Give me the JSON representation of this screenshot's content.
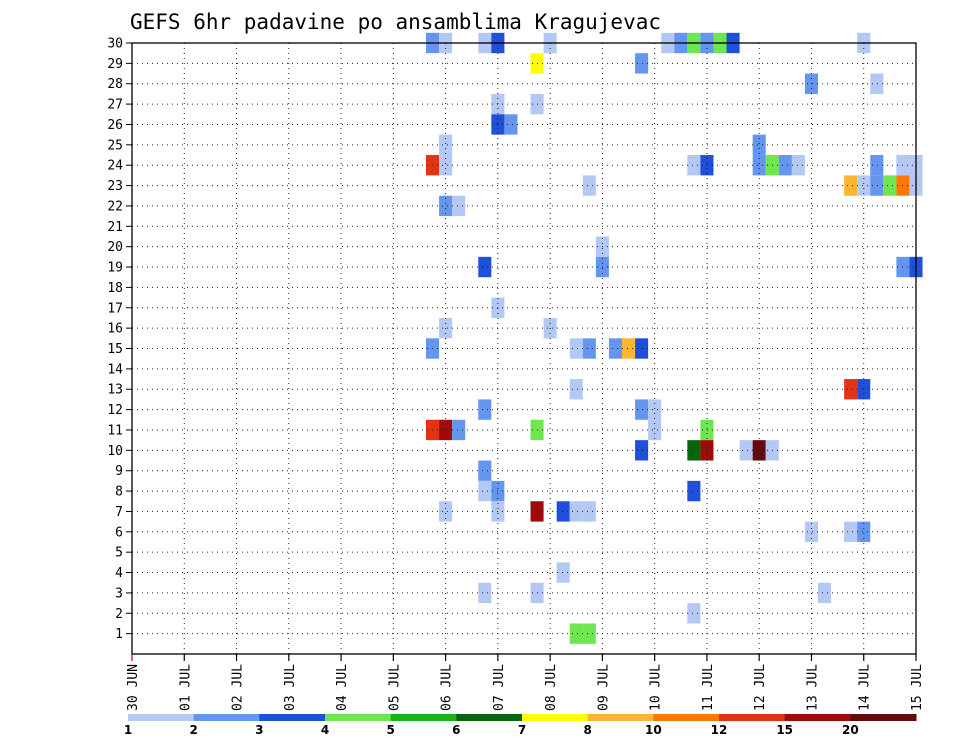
{
  "chart_data": {
    "type": "heatmap",
    "title": "GEFS 6hr padavine po ansamblima Kragujevac",
    "xlabel": "",
    "ylabel": "",
    "x_tick_labels": [
      "30 JUN",
      "01 JUL",
      "02 JUL",
      "03 JUL",
      "04 JUL",
      "05 JUL",
      "06 JUL",
      "07 JUL",
      "08 JUL",
      "09 JUL",
      "10 JUL",
      "11 JUL",
      "12 JUL",
      "13 JUL",
      "14 JUL",
      "15 JUL"
    ],
    "x_range_days": [
      0,
      15
    ],
    "y_tick_labels": [
      "1",
      "2",
      "3",
      "4",
      "5",
      "6",
      "7",
      "8",
      "9",
      "10",
      "11",
      "12",
      "13",
      "14",
      "15",
      "16",
      "17",
      "18",
      "19",
      "20",
      "21",
      "22",
      "23",
      "24",
      "25",
      "26",
      "27",
      "28",
      "29",
      "30"
    ],
    "y_range": [
      0,
      30
    ],
    "grid": true,
    "grid_style": "dotted",
    "legend": {
      "placement": "bottom",
      "colors": [
        "#b4c8f5",
        "#6496f0",
        "#1e50dc",
        "#6ee650",
        "#19b419",
        "#0a640a",
        "#ffff00",
        "#ffb432",
        "#ff7800",
        "#e63214",
        "#a00a0a",
        "#640a0a"
      ],
      "labels": [
        "1",
        "2",
        "3",
        "4",
        "5",
        "6",
        "7",
        "8",
        "10",
        "12",
        "15",
        "20"
      ]
    },
    "cells": [
      {
        "day": 5.75,
        "member": 30,
        "c": 2
      },
      {
        "day": 6.0,
        "member": 30,
        "c": 1
      },
      {
        "day": 6.75,
        "member": 30,
        "c": 1
      },
      {
        "day": 7.0,
        "member": 30,
        "c": 3
      },
      {
        "day": 8.0,
        "member": 30,
        "c": 1
      },
      {
        "day": 10.25,
        "member": 30,
        "c": 1
      },
      {
        "day": 10.5,
        "member": 30,
        "c": 2
      },
      {
        "day": 10.75,
        "member": 30,
        "c": 4
      },
      {
        "day": 11.0,
        "member": 30,
        "c": 2
      },
      {
        "day": 11.25,
        "member": 30,
        "c": 4
      },
      {
        "day": 11.5,
        "member": 30,
        "c": 3
      },
      {
        "day": 14.0,
        "member": 30,
        "c": 1
      },
      {
        "day": 7.75,
        "member": 29,
        "c": 7
      },
      {
        "day": 9.75,
        "member": 29,
        "c": 2
      },
      {
        "day": 13.0,
        "member": 28,
        "c": 2
      },
      {
        "day": 14.25,
        "member": 28,
        "c": 1
      },
      {
        "day": 7.0,
        "member": 27,
        "c": 1
      },
      {
        "day": 7.75,
        "member": 27,
        "c": 1
      },
      {
        "day": 7.0,
        "member": 26,
        "c": 3
      },
      {
        "day": 7.25,
        "member": 26,
        "c": 2
      },
      {
        "day": 6.0,
        "member": 25,
        "c": 1
      },
      {
        "day": 12.0,
        "member": 25,
        "c": 2
      },
      {
        "day": 5.75,
        "member": 24,
        "c": 10
      },
      {
        "day": 6.0,
        "member": 24,
        "c": 1
      },
      {
        "day": 10.75,
        "member": 24,
        "c": 1
      },
      {
        "day": 11.0,
        "member": 24,
        "c": 3
      },
      {
        "day": 12.0,
        "member": 24,
        "c": 2
      },
      {
        "day": 12.25,
        "member": 24,
        "c": 4
      },
      {
        "day": 12.5,
        "member": 24,
        "c": 2
      },
      {
        "day": 12.75,
        "member": 24,
        "c": 1
      },
      {
        "day": 14.25,
        "member": 24,
        "c": 2
      },
      {
        "day": 14.75,
        "member": 24,
        "c": 1
      },
      {
        "day": 15.0,
        "member": 24,
        "c": 1
      },
      {
        "day": 8.75,
        "member": 23,
        "c": 1
      },
      {
        "day": 13.75,
        "member": 23,
        "c": 8
      },
      {
        "day": 14.0,
        "member": 23,
        "c": 1
      },
      {
        "day": 14.25,
        "member": 23,
        "c": 2
      },
      {
        "day": 14.5,
        "member": 23,
        "c": 4
      },
      {
        "day": 14.75,
        "member": 23,
        "c": 9
      },
      {
        "day": 15.0,
        "member": 23,
        "c": 1
      },
      {
        "day": 6.0,
        "member": 22,
        "c": 2
      },
      {
        "day": 6.25,
        "member": 22,
        "c": 1
      },
      {
        "day": 9.0,
        "member": 20,
        "c": 1
      },
      {
        "day": 9.0,
        "member": 19,
        "c": 2
      },
      {
        "day": 6.75,
        "member": 19,
        "c": 3
      },
      {
        "day": 14.75,
        "member": 19,
        "c": 2
      },
      {
        "day": 15.0,
        "member": 19,
        "c": 3
      },
      {
        "day": 7.0,
        "member": 17,
        "c": 1
      },
      {
        "day": 6.0,
        "member": 16,
        "c": 1
      },
      {
        "day": 8.0,
        "member": 16,
        "c": 1
      },
      {
        "day": 5.75,
        "member": 15,
        "c": 2
      },
      {
        "day": 8.5,
        "member": 15,
        "c": 1
      },
      {
        "day": 8.75,
        "member": 15,
        "c": 2
      },
      {
        "day": 9.25,
        "member": 15,
        "c": 2
      },
      {
        "day": 9.5,
        "member": 15,
        "c": 8
      },
      {
        "day": 9.75,
        "member": 15,
        "c": 3
      },
      {
        "day": 8.5,
        "member": 13,
        "c": 1
      },
      {
        "day": 13.75,
        "member": 13,
        "c": 10
      },
      {
        "day": 14.0,
        "member": 13,
        "c": 3
      },
      {
        "day": 6.75,
        "member": 12,
        "c": 2
      },
      {
        "day": 9.75,
        "member": 12,
        "c": 2
      },
      {
        "day": 10.0,
        "member": 12,
        "c": 1
      },
      {
        "day": 5.75,
        "member": 11,
        "c": 10
      },
      {
        "day": 6.0,
        "member": 11,
        "c": 11
      },
      {
        "day": 6.25,
        "member": 11,
        "c": 2
      },
      {
        "day": 7.75,
        "member": 11,
        "c": 4
      },
      {
        "day": 10.0,
        "member": 11,
        "c": 1
      },
      {
        "day": 11.0,
        "member": 11,
        "c": 4
      },
      {
        "day": 9.75,
        "member": 10,
        "c": 3
      },
      {
        "day": 10.75,
        "member": 10,
        "c": 6
      },
      {
        "day": 11.0,
        "member": 10,
        "c": 11
      },
      {
        "day": 11.75,
        "member": 10,
        "c": 1
      },
      {
        "day": 12.0,
        "member": 10,
        "c": 12
      },
      {
        "day": 12.25,
        "member": 10,
        "c": 1
      },
      {
        "day": 6.75,
        "member": 9,
        "c": 2
      },
      {
        "day": 6.75,
        "member": 8,
        "c": 1
      },
      {
        "day": 7.0,
        "member": 8,
        "c": 2
      },
      {
        "day": 10.75,
        "member": 8,
        "c": 3
      },
      {
        "day": 6.0,
        "member": 7,
        "c": 1
      },
      {
        "day": 7.0,
        "member": 7,
        "c": 1
      },
      {
        "day": 7.75,
        "member": 7,
        "c": 11
      },
      {
        "day": 8.25,
        "member": 7,
        "c": 3
      },
      {
        "day": 8.5,
        "member": 7,
        "c": 1
      },
      {
        "day": 8.75,
        "member": 7,
        "c": 1
      },
      {
        "day": 13.0,
        "member": 6,
        "c": 1
      },
      {
        "day": 13.75,
        "member": 6,
        "c": 1
      },
      {
        "day": 14.0,
        "member": 6,
        "c": 2
      },
      {
        "day": 8.25,
        "member": 4,
        "c": 1
      },
      {
        "day": 6.75,
        "member": 3,
        "c": 1
      },
      {
        "day": 7.75,
        "member": 3,
        "c": 1
      },
      {
        "day": 13.25,
        "member": 3,
        "c": 1
      },
      {
        "day": 10.75,
        "member": 2,
        "c": 1
      },
      {
        "day": 8.5,
        "member": 1,
        "c": 4
      },
      {
        "day": 8.75,
        "member": 1,
        "c": 4
      }
    ]
  }
}
